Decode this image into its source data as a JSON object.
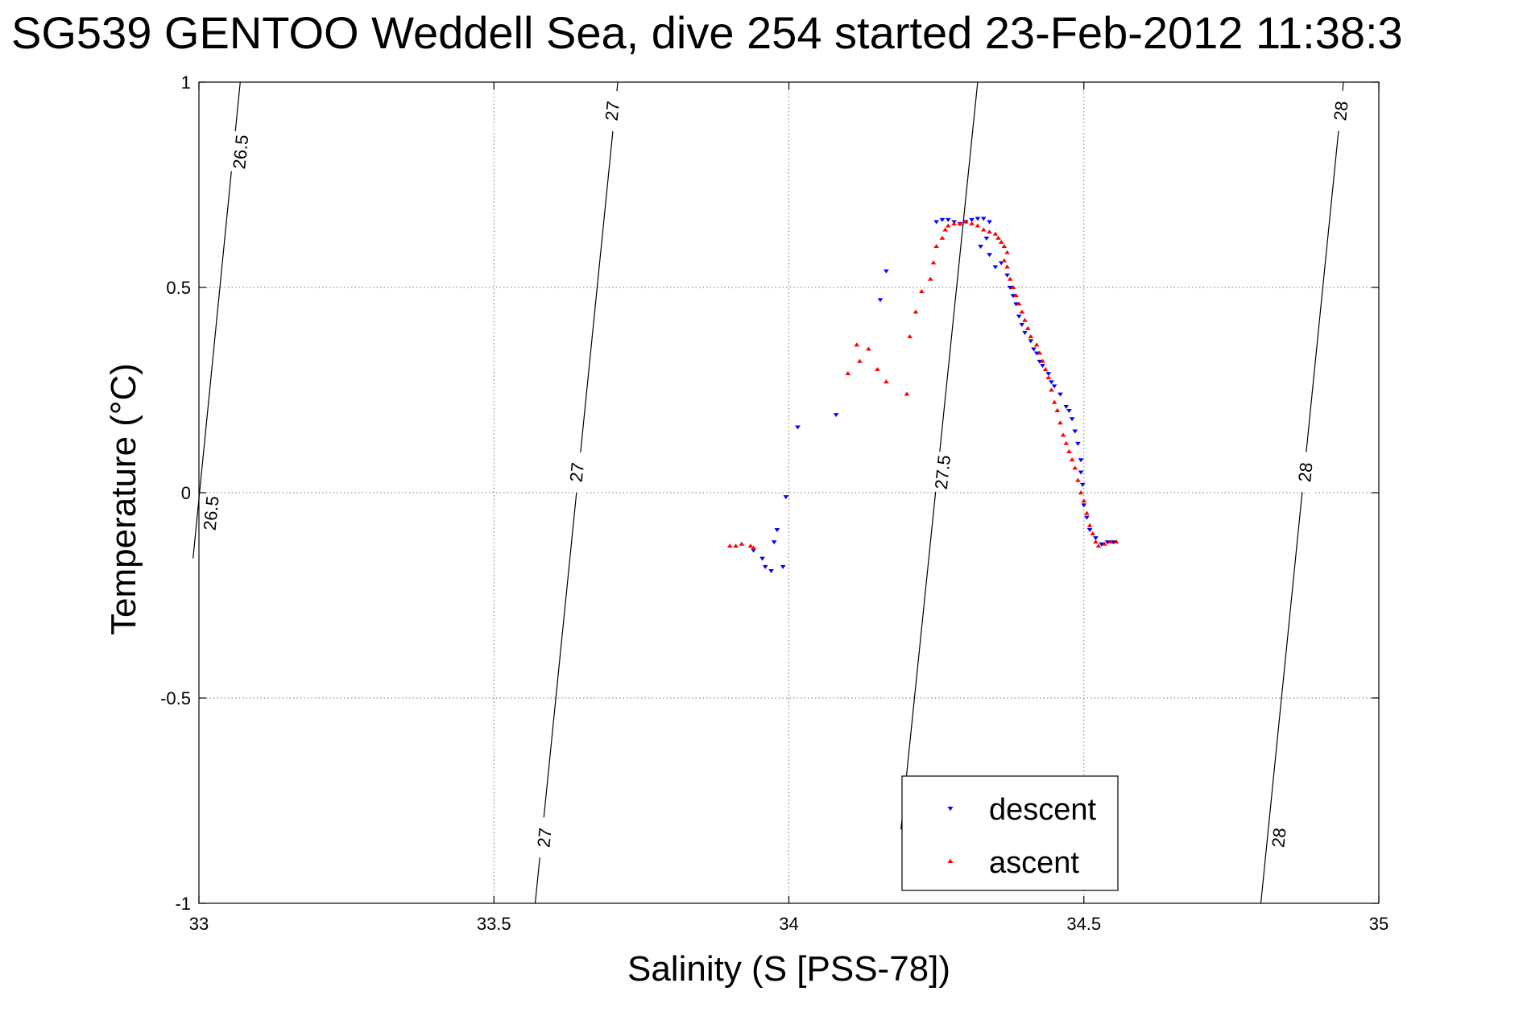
{
  "chart_data": {
    "type": "scatter",
    "title": "SG539 GENTOO Weddell Sea, dive 254 started 23-Feb-2012 11:38:3",
    "xlabel": "Salinity (S [PSS-78])",
    "ylabel": "Temperature (°C)",
    "xlim": [
      33,
      35
    ],
    "ylim": [
      -1,
      1
    ],
    "xticks": [
      33,
      33.5,
      34,
      34.5,
      35
    ],
    "yticks": [
      -1,
      -0.5,
      0,
      0.5,
      1
    ],
    "xtick_labels": [
      "33",
      "33.5",
      "34",
      "34.5",
      "35"
    ],
    "ytick_labels": [
      "-1",
      "-0.5",
      "0",
      "0.5",
      "1"
    ],
    "grid": true,
    "legend_position": "bottom-right",
    "contours": [
      {
        "level": "26.5",
        "line": [
          [
            33.07,
            1.0
          ],
          [
            32.99,
            -0.16
          ]
        ],
        "labels": [
          {
            "s": 33.07,
            "t": 0.83
          },
          {
            "s": 33.02,
            "t": -0.05
          }
        ]
      },
      {
        "level": "27",
        "line": [
          [
            33.71,
            1.0
          ],
          [
            33.57,
            -1.0
          ]
        ],
        "labels": [
          {
            "s": 33.7,
            "t": 0.93
          },
          {
            "s": 33.64,
            "t": 0.05
          },
          {
            "s": 33.585,
            "t": -0.84
          }
        ]
      },
      {
        "level": "27.5",
        "line": [
          [
            34.32,
            1.0
          ],
          [
            34.19,
            -0.82
          ]
        ],
        "labels": [
          {
            "s": 34.26,
            "t": 0.05
          }
        ]
      },
      {
        "level": "28",
        "line": [
          [
            34.94,
            1.0
          ],
          [
            34.8,
            -1.0
          ]
        ],
        "labels": [
          {
            "s": 34.935,
            "t": 0.93
          },
          {
            "s": 34.875,
            "t": 0.05
          },
          {
            "s": 34.83,
            "t": -0.84
          }
        ]
      }
    ],
    "series": [
      {
        "name": "descent",
        "color": "#0000ff",
        "marker": "triangle-down",
        "points": [
          [
            33.94,
            -0.14
          ],
          [
            33.955,
            -0.16
          ],
          [
            33.96,
            -0.18
          ],
          [
            33.97,
            -0.19
          ],
          [
            33.975,
            -0.12
          ],
          [
            33.98,
            -0.09
          ],
          [
            33.99,
            -0.18
          ],
          [
            33.995,
            -0.01
          ],
          [
            34.015,
            0.16
          ],
          [
            34.08,
            0.19
          ],
          [
            34.155,
            0.47
          ],
          [
            34.165,
            0.54
          ],
          [
            34.25,
            0.66
          ],
          [
            34.26,
            0.665
          ],
          [
            34.27,
            0.665
          ],
          [
            34.28,
            0.66
          ],
          [
            34.29,
            0.655
          ],
          [
            34.3,
            0.66
          ],
          [
            34.31,
            0.665
          ],
          [
            34.32,
            0.668
          ],
          [
            34.33,
            0.668
          ],
          [
            34.34,
            0.66
          ],
          [
            34.335,
            0.62
          ],
          [
            34.325,
            0.6
          ],
          [
            34.34,
            0.58
          ],
          [
            34.35,
            0.55
          ],
          [
            34.36,
            0.56
          ],
          [
            34.37,
            0.53
          ],
          [
            34.375,
            0.5
          ],
          [
            34.38,
            0.48
          ],
          [
            34.385,
            0.46
          ],
          [
            34.39,
            0.43
          ],
          [
            34.395,
            0.41
          ],
          [
            34.4,
            0.39
          ],
          [
            34.41,
            0.37
          ],
          [
            34.415,
            0.35
          ],
          [
            34.42,
            0.34
          ],
          [
            34.425,
            0.32
          ],
          [
            34.43,
            0.31
          ],
          [
            34.44,
            0.29
          ],
          [
            34.445,
            0.27
          ],
          [
            34.45,
            0.26
          ],
          [
            34.46,
            0.24
          ],
          [
            34.47,
            0.21
          ],
          [
            34.475,
            0.2
          ],
          [
            34.48,
            0.18
          ],
          [
            34.485,
            0.15
          ],
          [
            34.49,
            0.12
          ],
          [
            34.495,
            0.08
          ],
          [
            34.495,
            0.05
          ],
          [
            34.498,
            0.02
          ],
          [
            34.5,
            -0.03
          ],
          [
            34.505,
            -0.06
          ],
          [
            34.51,
            -0.09
          ],
          [
            34.52,
            -0.11
          ],
          [
            34.53,
            -0.125
          ],
          [
            34.54,
            -0.12
          ],
          [
            34.55,
            -0.12
          ]
        ]
      },
      {
        "name": "ascent",
        "color": "#ff0000",
        "marker": "triangle-up",
        "points": [
          [
            33.9,
            -0.13
          ],
          [
            33.91,
            -0.13
          ],
          [
            33.92,
            -0.125
          ],
          [
            33.935,
            -0.13
          ],
          [
            33.94,
            -0.135
          ],
          [
            34.1,
            0.29
          ],
          [
            34.115,
            0.36
          ],
          [
            34.12,
            0.32
          ],
          [
            34.135,
            0.35
          ],
          [
            34.15,
            0.3
          ],
          [
            34.165,
            0.27
          ],
          [
            34.2,
            0.24
          ],
          [
            34.205,
            0.38
          ],
          [
            34.215,
            0.44
          ],
          [
            34.225,
            0.49
          ],
          [
            34.24,
            0.52
          ],
          [
            34.245,
            0.56
          ],
          [
            34.25,
            0.6
          ],
          [
            34.26,
            0.62
          ],
          [
            34.265,
            0.64
          ],
          [
            34.27,
            0.65
          ],
          [
            34.28,
            0.655
          ],
          [
            34.29,
            0.655
          ],
          [
            34.3,
            0.66
          ],
          [
            34.31,
            0.655
          ],
          [
            34.32,
            0.65
          ],
          [
            34.33,
            0.64
          ],
          [
            34.34,
            0.635
          ],
          [
            34.35,
            0.63
          ],
          [
            34.355,
            0.62
          ],
          [
            34.36,
            0.61
          ],
          [
            34.365,
            0.6
          ],
          [
            34.37,
            0.585
          ],
          [
            34.365,
            0.565
          ],
          [
            34.37,
            0.55
          ],
          [
            34.375,
            0.52
          ],
          [
            34.38,
            0.5
          ],
          [
            34.385,
            0.48
          ],
          [
            34.39,
            0.46
          ],
          [
            34.395,
            0.44
          ],
          [
            34.4,
            0.42
          ],
          [
            34.405,
            0.4
          ],
          [
            34.41,
            0.38
          ],
          [
            34.42,
            0.36
          ],
          [
            34.425,
            0.34
          ],
          [
            34.43,
            0.32
          ],
          [
            34.435,
            0.3
          ],
          [
            34.44,
            0.28
          ],
          [
            34.445,
            0.25
          ],
          [
            34.45,
            0.22
          ],
          [
            34.455,
            0.2
          ],
          [
            34.46,
            0.17
          ],
          [
            34.465,
            0.14
          ],
          [
            34.47,
            0.12
          ],
          [
            34.475,
            0.1
          ],
          [
            34.48,
            0.08
          ],
          [
            34.485,
            0.06
          ],
          [
            34.49,
            0.03
          ],
          [
            34.495,
            0.0
          ],
          [
            34.5,
            -0.02
          ],
          [
            34.505,
            -0.05
          ],
          [
            34.51,
            -0.08
          ],
          [
            34.515,
            -0.1
          ],
          [
            34.52,
            -0.12
          ],
          [
            34.525,
            -0.13
          ],
          [
            34.535,
            -0.125
          ],
          [
            34.545,
            -0.12
          ],
          [
            34.555,
            -0.12
          ]
        ]
      }
    ]
  }
}
